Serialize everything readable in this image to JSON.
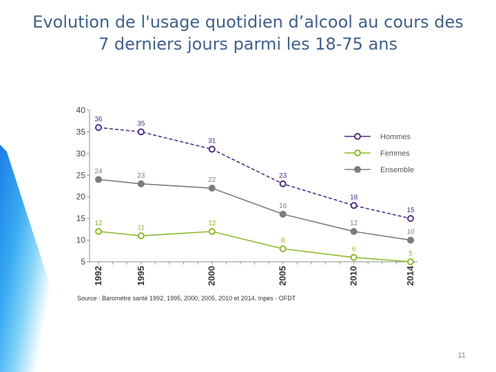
{
  "title": "Evolution de l'usage quotidien d’alcool au cours des 7 derniers jours parmi les 18-75 ans",
  "page_number": "11",
  "chart_data": {
    "type": "line",
    "title": "Evolution de l'usage quotidien d’alcool au cours des 7 derniers jours parmi les 18-75 ans",
    "xlabel": "",
    "ylabel": "",
    "x": [
      1992,
      1995,
      2000,
      2005,
      2010,
      2014
    ],
    "x_tick_labels": [
      "1992",
      "1995",
      "2000",
      "2005",
      "2010",
      "2014"
    ],
    "xlim": [
      1992,
      2014
    ],
    "ylim": [
      5,
      40
    ],
    "y_ticks": [
      5,
      10,
      15,
      20,
      25,
      30,
      35,
      40
    ],
    "y_tick_labels": [
      "5",
      "10",
      "15",
      "20",
      "25",
      "30",
      "35",
      "40"
    ],
    "series": [
      {
        "name": "Hommes",
        "values": [
          36,
          35,
          31,
          23,
          18,
          15
        ],
        "labels": [
          "36",
          "35",
          "31",
          "23",
          "18",
          "15"
        ],
        "color": "#4b2d83",
        "line_style": "dashed",
        "marker": "hollow"
      },
      {
        "name": "Femmes",
        "values": [
          12,
          11,
          12,
          8,
          6,
          5
        ],
        "labels": [
          "12",
          "11",
          "12",
          "8",
          "6",
          "5"
        ],
        "color": "#8bb82a",
        "line_style": "solid",
        "marker": "hollow"
      },
      {
        "name": "Ensemble",
        "values": [
          24,
          23,
          22,
          16,
          12,
          10
        ],
        "labels": [
          "24",
          "23",
          "22",
          "16",
          "12",
          "10"
        ],
        "color": "#7c7c7c",
        "line_style": "solid",
        "marker": "filled"
      }
    ],
    "legend_position": "right",
    "grid": false,
    "source": "Source : Baromètre santé 1992, 1995, 2000, 2005, 2010 et 2014, Inpes - OFDT"
  }
}
